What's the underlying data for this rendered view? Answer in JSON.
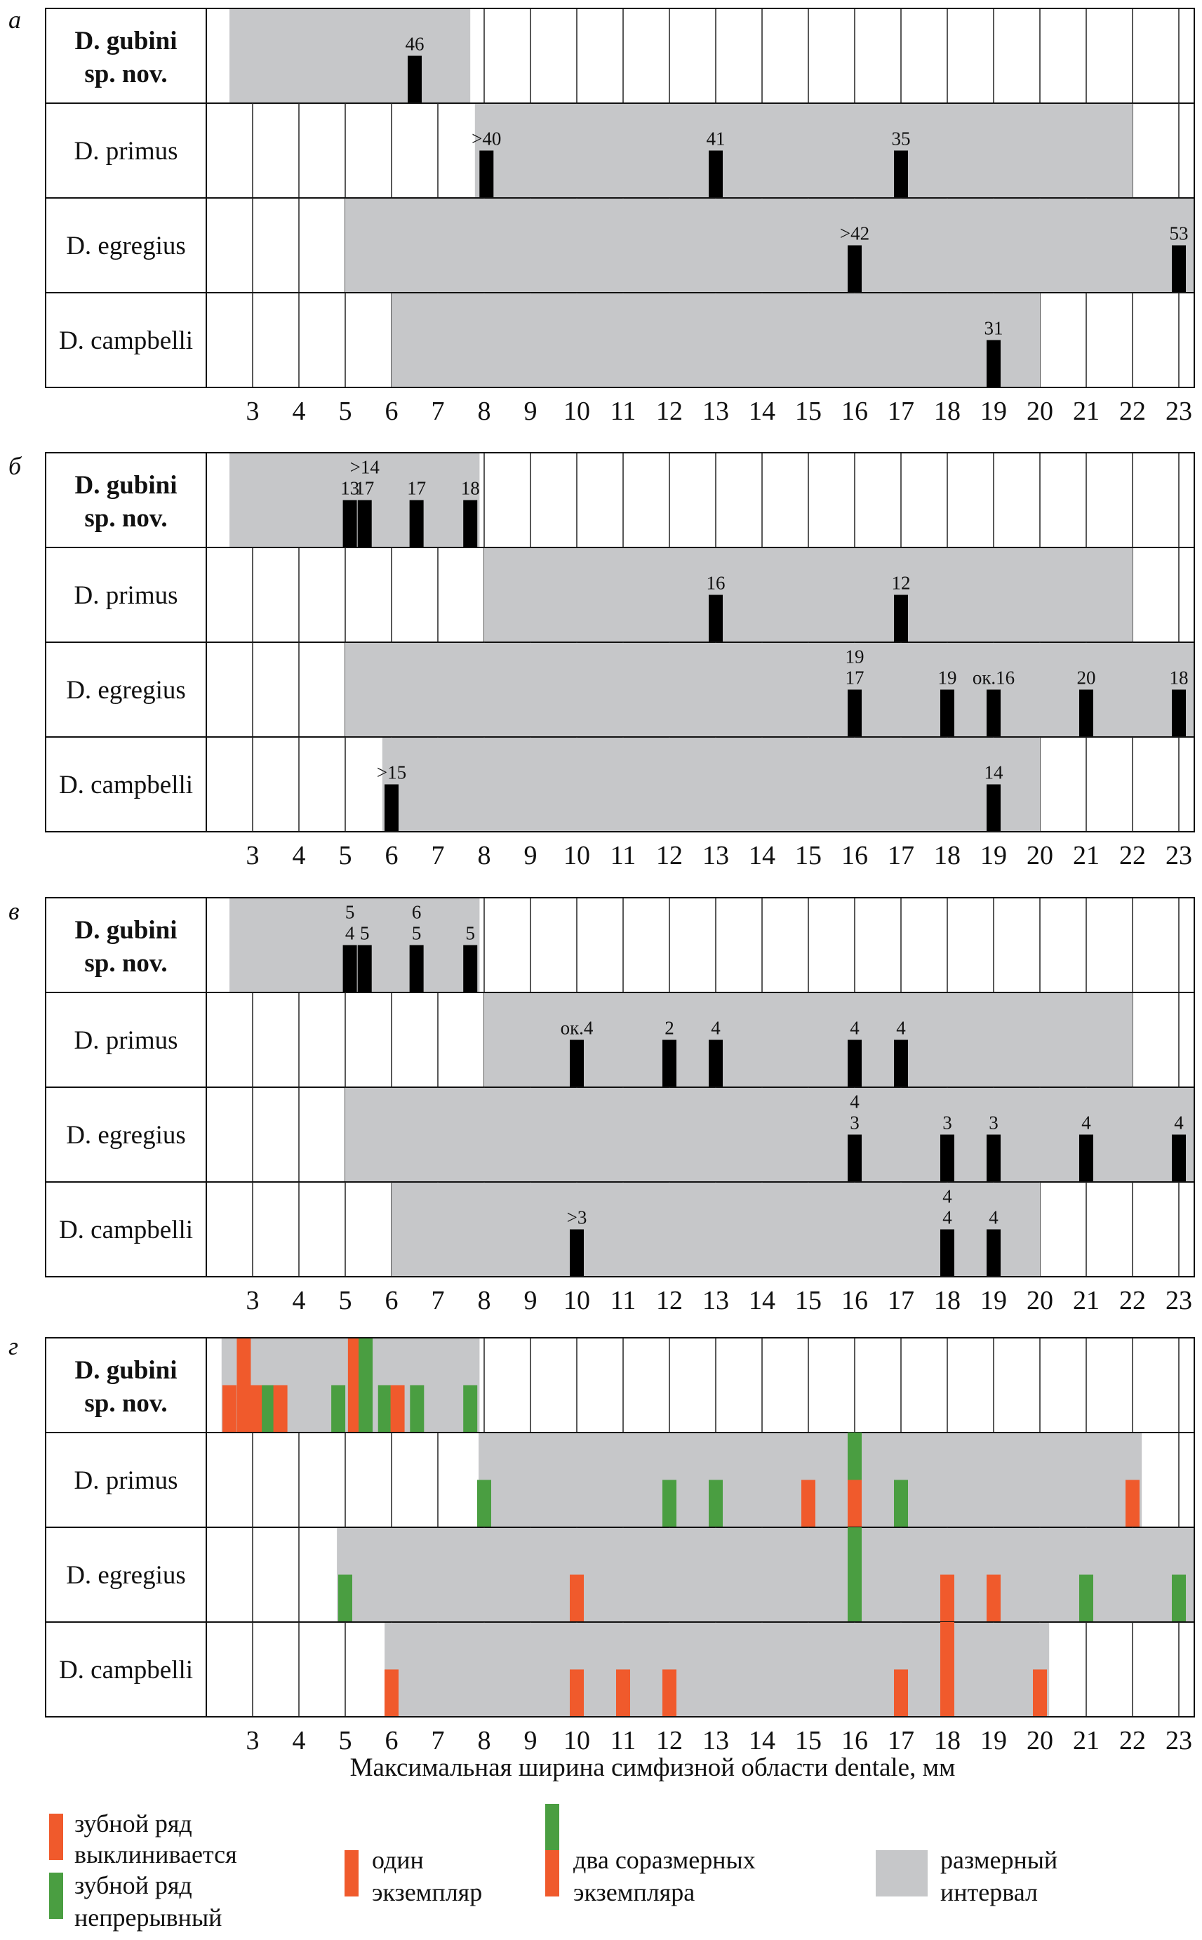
{
  "colors": {
    "tapering": "#f05a2c",
    "continuous": "#4a9e41",
    "range": "#c6c7c9",
    "single_mark": "#000000"
  },
  "x_axis_label": "Максимальная ширина симфизной области dentale, мм",
  "legend": {
    "tapering": [
      "зубной ряд",
      "выклинивается"
    ],
    "continuous": [
      "зубной ряд",
      "непрерывный"
    ],
    "one": [
      "один",
      "экземпляр"
    ],
    "two": [
      "два соразмерных",
      "экземпляра"
    ],
    "range": [
      "размерный",
      "интервал"
    ]
  },
  "chart_data": [
    {
      "type": "bar",
      "panel": "а",
      "xlim": [
        2,
        23.35
      ],
      "ticks": [
        "3",
        "4",
        "5",
        "6",
        "7",
        "8",
        "9",
        "10",
        "11",
        "12",
        "13",
        "14",
        "15",
        "16",
        "17",
        "18",
        "19",
        "20",
        "21",
        "22",
        "23"
      ],
      "rows": [
        {
          "species": [
            "D. gubini",
            "sp. nov."
          ],
          "bold": true,
          "range": [
            2.5,
            7.7
          ],
          "marks": [
            {
              "x": 6.5,
              "labels": [
                "46"
              ]
            }
          ]
        },
        {
          "species": [
            "D. primus"
          ],
          "range": [
            7.8,
            22
          ],
          "marks": [
            {
              "x": 8.05,
              "labels": [
                ">40"
              ]
            },
            {
              "x": 13,
              "labels": [
                "41"
              ]
            },
            {
              "x": 17,
              "labels": [
                "35"
              ]
            }
          ]
        },
        {
          "species": [
            "D. egregius"
          ],
          "range": [
            5,
            23.35
          ],
          "marks": [
            {
              "x": 16,
              "labels": [
                ">42"
              ]
            },
            {
              "x": 23,
              "labels": [
                "53"
              ]
            }
          ]
        },
        {
          "species": [
            "D. campbelli"
          ],
          "range": [
            6,
            20
          ],
          "marks": [
            {
              "x": 19,
              "labels": [
                "31"
              ]
            }
          ]
        }
      ]
    },
    {
      "type": "bar",
      "panel": "б",
      "xlim": [
        2,
        23.35
      ],
      "ticks": [
        "3",
        "4",
        "5",
        "6",
        "7",
        "8",
        "9",
        "10",
        "11",
        "12",
        "13",
        "14",
        "15",
        "16",
        "17",
        "18",
        "19",
        "20",
        "21",
        "22",
        "23"
      ],
      "rows": [
        {
          "species": [
            "D. gubini",
            "sp. nov."
          ],
          "bold": true,
          "range": [
            2.5,
            7.9
          ],
          "marks": [
            {
              "x": 5.1,
              "labels": [
                "13"
              ]
            },
            {
              "x": 5.42,
              "labels": [
                ">14",
                "17"
              ]
            },
            {
              "x": 6.54,
              "labels": [
                "17"
              ]
            },
            {
              "x": 7.7,
              "labels": [
                "18"
              ]
            }
          ]
        },
        {
          "species": [
            "D. primus"
          ],
          "range": [
            8,
            22
          ],
          "marks": [
            {
              "x": 13,
              "labels": [
                "16"
              ]
            },
            {
              "x": 17,
              "labels": [
                "12"
              ]
            }
          ]
        },
        {
          "species": [
            "D. egregius"
          ],
          "range": [
            5,
            23.35
          ],
          "marks": [
            {
              "x": 16,
              "labels": [
                "19",
                "17"
              ]
            },
            {
              "x": 18,
              "labels": [
                "19"
              ]
            },
            {
              "x": 19,
              "labels": [
                "ок.16"
              ]
            },
            {
              "x": 21,
              "labels": [
                "20"
              ]
            },
            {
              "x": 23,
              "labels": [
                "18"
              ]
            }
          ]
        },
        {
          "species": [
            "D. campbelli"
          ],
          "range": [
            5.8,
            20
          ],
          "marks": [
            {
              "x": 6,
              "labels": [
                ">15"
              ]
            },
            {
              "x": 19,
              "labels": [
                "14"
              ]
            }
          ]
        }
      ]
    },
    {
      "type": "bar",
      "panel": "в",
      "xlim": [
        2,
        23.35
      ],
      "ticks": [
        "3",
        "4",
        "5",
        "6",
        "7",
        "8",
        "9",
        "10",
        "11",
        "12",
        "13",
        "14",
        "15",
        "16",
        "17",
        "18",
        "19",
        "20",
        "21",
        "22",
        "23"
      ],
      "rows": [
        {
          "species": [
            "D. gubini",
            "sp. nov."
          ],
          "bold": true,
          "range": [
            2.5,
            7.9
          ],
          "marks": [
            {
              "x": 5.1,
              "labels": [
                "5",
                "4"
              ]
            },
            {
              "x": 5.42,
              "labels": [
                "5"
              ]
            },
            {
              "x": 6.54,
              "labels": [
                "6",
                "5"
              ]
            },
            {
              "x": 7.7,
              "labels": [
                "5"
              ]
            }
          ]
        },
        {
          "species": [
            "D. primus"
          ],
          "range": [
            8,
            22
          ],
          "marks": [
            {
              "x": 10,
              "labels": [
                "ок.4"
              ]
            },
            {
              "x": 12,
              "labels": [
                "2"
              ]
            },
            {
              "x": 13,
              "labels": [
                "4"
              ]
            },
            {
              "x": 16,
              "labels": [
                "4"
              ]
            },
            {
              "x": 17,
              "labels": [
                "4"
              ]
            }
          ]
        },
        {
          "species": [
            "D. egregius"
          ],
          "range": [
            5,
            23.35
          ],
          "marks": [
            {
              "x": 16,
              "labels": [
                "4",
                "3"
              ]
            },
            {
              "x": 18,
              "labels": [
                "3"
              ]
            },
            {
              "x": 19,
              "labels": [
                "3"
              ]
            },
            {
              "x": 21,
              "labels": [
                "4"
              ]
            },
            {
              "x": 23,
              "labels": [
                "4"
              ]
            }
          ]
        },
        {
          "species": [
            "D. campbelli"
          ],
          "range": [
            6,
            20
          ],
          "marks": [
            {
              "x": 10,
              "labels": [
                ">3"
              ]
            },
            {
              "x": 18,
              "labels": [
                "4",
                "4"
              ]
            },
            {
              "x": 19,
              "labels": [
                "4"
              ]
            }
          ]
        }
      ]
    },
    {
      "type": "bar",
      "panel": "г",
      "xlim": [
        2,
        23.35
      ],
      "ticks": [
        "3",
        "4",
        "5",
        "6",
        "7",
        "8",
        "9",
        "10",
        "11",
        "12",
        "13",
        "14",
        "15",
        "16",
        "17",
        "18",
        "19",
        "20",
        "21",
        "22",
        "23"
      ],
      "rows": [
        {
          "species": [
            "D. gubini",
            "sp. nov."
          ],
          "bold": true,
          "range": [
            2.33,
            7.9
          ],
          "bars": [
            {
              "x": 2.5,
              "lower": "tapering"
            },
            {
              "x": 2.81,
              "lower": "tapering",
              "upper": "tapering"
            },
            {
              "x": 3.1,
              "lower": "tapering"
            },
            {
              "x": 3.35,
              "lower": "continuous"
            },
            {
              "x": 3.6,
              "lower": "tapering"
            },
            {
              "x": 4.85,
              "lower": "continuous"
            },
            {
              "x": 5.21,
              "lower": "tapering",
              "upper": "tapering"
            },
            {
              "x": 5.44,
              "lower": "continuous",
              "upper": "continuous"
            },
            {
              "x": 5.86,
              "lower": "continuous"
            },
            {
              "x": 6.13,
              "lower": "tapering"
            },
            {
              "x": 6.55,
              "lower": "continuous"
            },
            {
              "x": 7.7,
              "lower": "continuous"
            }
          ]
        },
        {
          "species": [
            "D. primus"
          ],
          "range": [
            7.88,
            22.2
          ],
          "bars": [
            {
              "x": 8,
              "lower": "continuous"
            },
            {
              "x": 12,
              "lower": "continuous"
            },
            {
              "x": 13,
              "lower": "continuous"
            },
            {
              "x": 15,
              "lower": "tapering"
            },
            {
              "x": 16,
              "lower": "tapering",
              "upper": "continuous"
            },
            {
              "x": 17,
              "lower": "continuous"
            },
            {
              "x": 22,
              "lower": "tapering"
            }
          ]
        },
        {
          "species": [
            "D. egregius"
          ],
          "range": [
            4.82,
            23.35
          ],
          "bars": [
            {
              "x": 5,
              "lower": "continuous"
            },
            {
              "x": 10,
              "lower": "tapering"
            },
            {
              "x": 16,
              "lower": "continuous",
              "upper": "continuous"
            },
            {
              "x": 18,
              "lower": "tapering"
            },
            {
              "x": 19,
              "lower": "tapering"
            },
            {
              "x": 21,
              "lower": "continuous"
            },
            {
              "x": 23,
              "lower": "continuous"
            }
          ]
        },
        {
          "species": [
            "D. campbelli"
          ],
          "range": [
            5.85,
            20.2
          ],
          "bars": [
            {
              "x": 6,
              "lower": "tapering"
            },
            {
              "x": 10,
              "lower": "tapering"
            },
            {
              "x": 11,
              "lower": "tapering"
            },
            {
              "x": 12,
              "lower": "tapering"
            },
            {
              "x": 17,
              "lower": "tapering"
            },
            {
              "x": 18,
              "lower": "tapering",
              "upper": "tapering"
            },
            {
              "x": 20,
              "lower": "tapering"
            }
          ]
        }
      ]
    }
  ]
}
